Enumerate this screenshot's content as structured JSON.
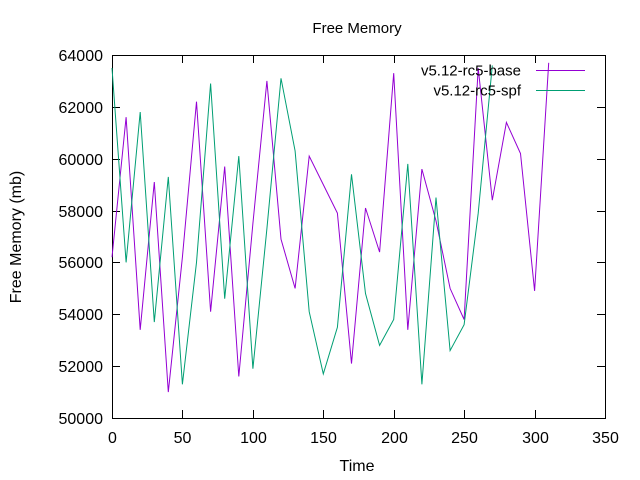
{
  "chart_data": {
    "type": "line",
    "title": "Free Memory",
    "xlabel": "Time",
    "ylabel": "Free Memory (mb)",
    "xlim": [
      0,
      350
    ],
    "ylim": [
      50000,
      64000
    ],
    "xticks": [
      0,
      50,
      100,
      150,
      200,
      250,
      300,
      350
    ],
    "yticks": [
      50000,
      52000,
      54000,
      56000,
      58000,
      60000,
      62000,
      64000
    ],
    "xtick_labels": [
      "0",
      "50",
      "100",
      "150",
      "200",
      "250",
      "300",
      "350"
    ],
    "ytick_labels": [
      "50000",
      "52000",
      "54000",
      "56000",
      "58000",
      "60000",
      "62000",
      "64000"
    ],
    "grid": false,
    "legend_position": "top-right",
    "series": [
      {
        "name": "v5.12-rc5-base",
        "color": "#9400d3",
        "x": [
          0,
          10,
          20,
          30,
          40,
          50,
          60,
          70,
          80,
          90,
          100,
          110,
          120,
          130,
          140,
          150,
          160,
          170,
          180,
          190,
          200,
          210,
          220,
          230,
          240,
          250,
          260,
          270,
          280,
          290,
          300,
          310
        ],
        "y": [
          56200,
          61600,
          53400,
          59100,
          51000,
          56200,
          62200,
          54100,
          59700,
          51600,
          57500,
          63000,
          56900,
          55000,
          60100,
          59000,
          57900,
          52100,
          58100,
          56400,
          63300,
          53400,
          59600,
          57600,
          55000,
          53800,
          63500,
          58400,
          61400,
          60200,
          54900,
          63700
        ]
      },
      {
        "name": "v5.12-rc5-spf",
        "color": "#009e73",
        "x": [
          0,
          10,
          20,
          30,
          40,
          50,
          60,
          70,
          80,
          90,
          100,
          110,
          120,
          130,
          140,
          150,
          160,
          170,
          180,
          190,
          200,
          210,
          220,
          230,
          240,
          250,
          260,
          270
        ],
        "y": [
          63500,
          56000,
          61800,
          53700,
          59300,
          51300,
          56000,
          62900,
          54600,
          60100,
          51900,
          57300,
          63100,
          60300,
          54100,
          51700,
          53500,
          59400,
          54800,
          52800,
          53800,
          59800,
          51300,
          58500,
          52600,
          53600,
          57900,
          63600
        ]
      }
    ]
  }
}
